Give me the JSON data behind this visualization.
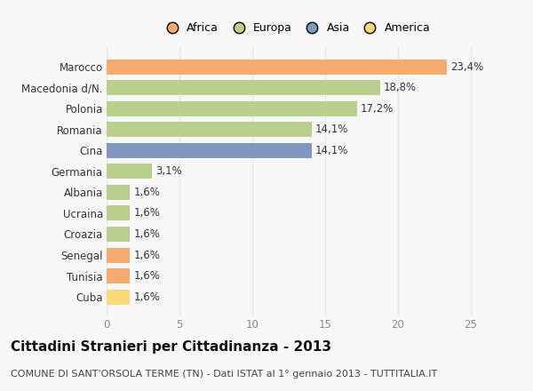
{
  "categories": [
    "Marocco",
    "Macedonia d/N.",
    "Polonia",
    "Romania",
    "Cina",
    "Germania",
    "Albania",
    "Ucraina",
    "Croazia",
    "Senegal",
    "Tunisia",
    "Cuba"
  ],
  "values": [
    23.4,
    18.8,
    17.2,
    14.1,
    14.1,
    3.1,
    1.6,
    1.6,
    1.6,
    1.6,
    1.6,
    1.6
  ],
  "labels": [
    "23,4%",
    "18,8%",
    "17,2%",
    "14,1%",
    "14,1%",
    "3,1%",
    "1,6%",
    "1,6%",
    "1,6%",
    "1,6%",
    "1,6%",
    "1,6%"
  ],
  "colors": [
    "#F5AA6E",
    "#BACF8E",
    "#BACF8E",
    "#BACF8E",
    "#8098BF",
    "#BACF8E",
    "#BACF8E",
    "#BACF8E",
    "#BACF8E",
    "#F5AA6E",
    "#F5AA6E",
    "#F5D97A"
  ],
  "legend_labels": [
    "Africa",
    "Europa",
    "Asia",
    "America"
  ],
  "legend_colors": [
    "#F5AA6E",
    "#BACF8E",
    "#8098BF",
    "#F5D97A"
  ],
  "xlim": [
    0,
    26
  ],
  "xticks": [
    0,
    5,
    10,
    15,
    20,
    25
  ],
  "title": "Cittadini Stranieri per Cittadinanza - 2013",
  "subtitle": "COMUNE DI SANT'ORSOLA TERME (TN) - Dati ISTAT al 1° gennaio 2013 - TUTTITALIA.IT",
  "background_color": "#f8f8f8",
  "plot_bg_color": "#f8f8f8",
  "grid_color": "#e8e8e8",
  "bar_height": 0.72,
  "label_fontsize": 8.5,
  "tick_fontsize": 8.5,
  "ytick_fontsize": 8.5,
  "title_fontsize": 11,
  "subtitle_fontsize": 8
}
